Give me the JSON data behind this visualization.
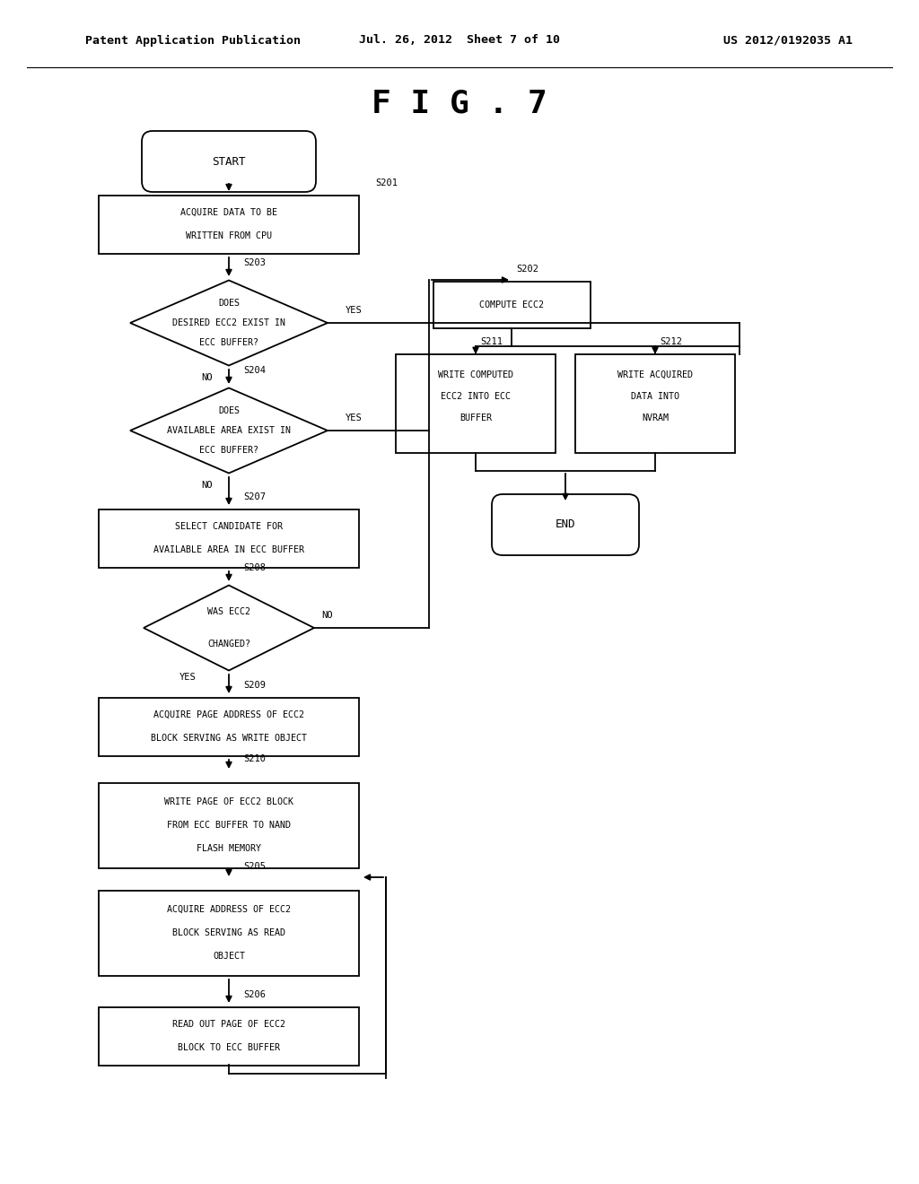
{
  "title": "F I G . 7",
  "header_left": "Patent Application Publication",
  "header_mid": "Jul. 26, 2012  Sheet 7 of 10",
  "header_right": "US 2012/0192035 A1",
  "bg_color": "#ffffff",
  "line_color": "#000000",
  "text_color": "#000000",
  "font_size_header": 9.5,
  "font_size_title": 26,
  "font_size_box": 7.2,
  "font_size_label": 7.5
}
